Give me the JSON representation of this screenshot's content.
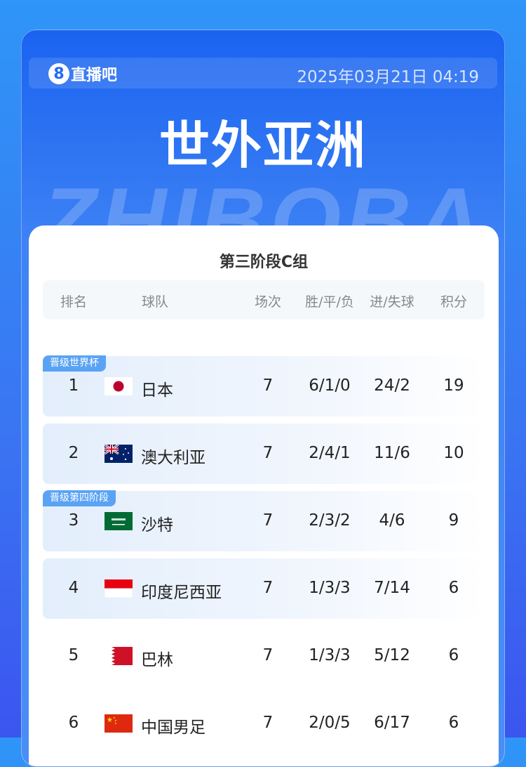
{
  "header": {
    "logo_digit": "8",
    "logo_text": "直播吧",
    "datetime": "2025年03月21日 04:19",
    "title": "世外亚洲",
    "watermark": "ZHIBOBA"
  },
  "table": {
    "subtitle": "第三阶段C组",
    "columns": [
      "排名",
      "球队",
      "场次",
      "胜/平/负",
      "进/失球",
      "积分"
    ],
    "rows": [
      {
        "rank": "1",
        "team": "日本",
        "flag": "japan",
        "played": "7",
        "wdl": "6/1/0",
        "goals": "24/2",
        "points": "19",
        "badge": "晋级世界杯"
      },
      {
        "rank": "2",
        "team": "澳大利亚",
        "flag": "australia",
        "played": "7",
        "wdl": "2/4/1",
        "goals": "11/6",
        "points": "10"
      },
      {
        "rank": "3",
        "team": "沙特",
        "flag": "saudi-arabia",
        "played": "7",
        "wdl": "2/3/2",
        "goals": "4/6",
        "points": "9",
        "badge": "晋级第四阶段"
      },
      {
        "rank": "4",
        "team": "印度尼西亚",
        "flag": "indonesia",
        "played": "7",
        "wdl": "1/3/3",
        "goals": "7/14",
        "points": "6"
      },
      {
        "rank": "5",
        "team": "巴林",
        "flag": "bahrain",
        "played": "7",
        "wdl": "1/3/3",
        "goals": "5/12",
        "points": "6"
      },
      {
        "rank": "6",
        "team": "中国男足",
        "flag": "china",
        "played": "7",
        "wdl": "2/0/5",
        "goals": "6/17",
        "points": "6"
      }
    ]
  },
  "colors": {
    "accent": "#1a63f1",
    "badge": "#5aa3f4"
  }
}
